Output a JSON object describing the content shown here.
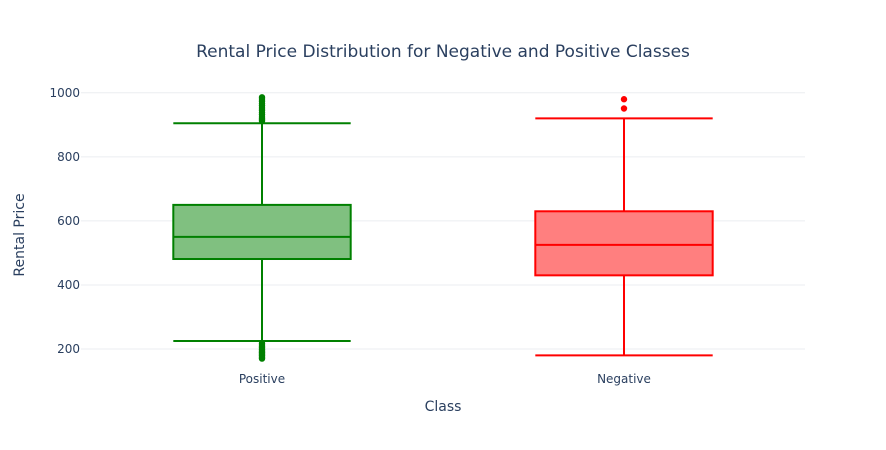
{
  "chart_data": {
    "type": "box",
    "title": "Rental Price Distribution for Negative and Positive Classes",
    "xlabel": "Class",
    "ylabel": "Rental Price",
    "ylim": [
      150,
      1040
    ],
    "yticks": [
      200,
      400,
      600,
      800,
      1000
    ],
    "grid": true,
    "categories": [
      "Positive",
      "Negative"
    ],
    "series": [
      {
        "category": "Positive",
        "color": "#008000",
        "fill": "#80c080",
        "lower_fence": 225,
        "q1": 481,
        "median": 550,
        "q3": 650,
        "upper_fence": 905,
        "outliers": [
          170,
          174,
          178,
          182,
          186,
          190,
          194,
          198,
          203,
          208,
          213,
          218,
          912,
          918,
          925,
          932,
          939,
          946,
          953,
          960,
          967,
          974,
          981,
          986
        ]
      },
      {
        "category": "Negative",
        "color": "#ff0000",
        "fill": "#ff7f7f",
        "lower_fence": 180,
        "q1": 430,
        "median": 525,
        "q3": 630,
        "upper_fence": 920,
        "outliers": [
          951,
          980
        ]
      }
    ]
  }
}
